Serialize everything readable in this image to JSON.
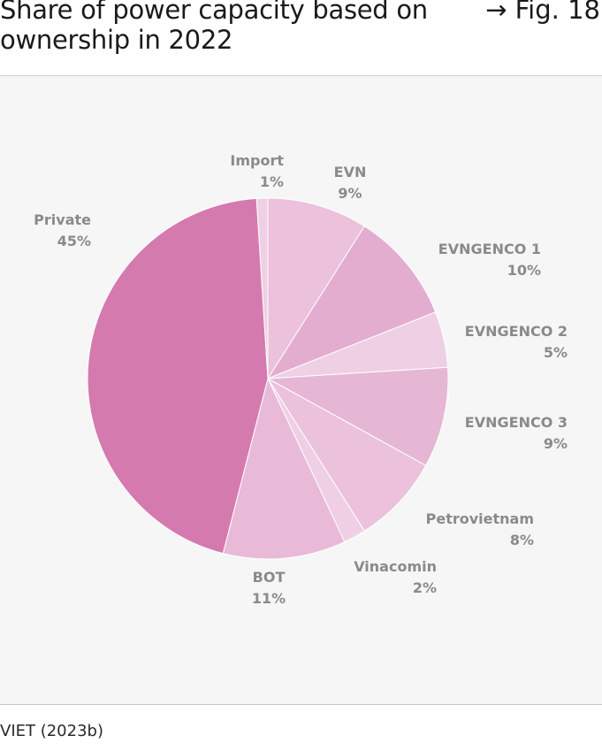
{
  "header": {
    "title": "Share of power capacity based on ownership in 2022",
    "figure_ref": "→ Fig. 18"
  },
  "footer": {
    "source": "VIET (2023b)"
  },
  "chart_data": {
    "type": "pie",
    "title": "Share of power capacity based on ownership in 2022",
    "slices": [
      {
        "label": "EVN",
        "value_label": "9%",
        "value": 9,
        "color": "#ebc1dc"
      },
      {
        "label": "EVNGENCO 1",
        "value_label": "10%",
        "value": 10,
        "color": "#e3add0"
      },
      {
        "label": "EVNGENCO 2",
        "value_label": "5%",
        "value": 5,
        "color": "#efcfe3"
      },
      {
        "label": "EVNGENCO 3",
        "value_label": "9%",
        "value": 9,
        "color": "#e6b7d5"
      },
      {
        "label": "Petrovietnam",
        "value_label": "8%",
        "value": 8,
        "color": "#ebc1dc"
      },
      {
        "label": "Vinacomin",
        "value_label": "2%",
        "value": 2,
        "color": "#efcfe3"
      },
      {
        "label": "BOT",
        "value_label": "11%",
        "value": 11,
        "color": "#e8bad8"
      },
      {
        "label": "Private",
        "value_label": "45%",
        "value": 45,
        "color": "#d57aae"
      },
      {
        "label": "Import",
        "value_label": "1%",
        "value": 1,
        "color": "#efcfe3"
      }
    ]
  }
}
